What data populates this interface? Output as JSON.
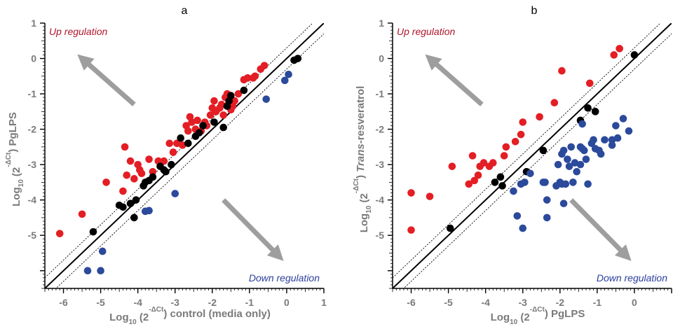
{
  "colors": {
    "up": "#e31e24",
    "neutral": "#000000",
    "down": "#2b4a9c",
    "up_label": "#b0152b",
    "down_label": "#2b3f9e",
    "arrow": "#9e9e9e",
    "axis_text": "#7a7a7a"
  },
  "chart_data": [
    {
      "type": "scatter",
      "panel": "a",
      "title": "a",
      "xlabel": "Log10 (2^-ΔCt) control (media only)",
      "xlabel_parts": [
        "Log",
        "10",
        " (2",
        "-ΔCt",
        ") control (media only)"
      ],
      "ylabel": "Log10 (2^-ΔCt) PgLPS",
      "ylabel_parts": [
        "Log",
        "10",
        " (2",
        "-ΔCt",
        ") ",
        "",
        "PgLPS"
      ],
      "xlim": [
        -6.5,
        1
      ],
      "ylim": [
        -6.5,
        1
      ],
      "xticks": [
        -6,
        -5,
        -4,
        -3,
        -2,
        -1,
        0,
        1
      ],
      "yticks": [
        -5,
        -4,
        -3,
        -2,
        -1,
        0,
        1
      ],
      "grid": false,
      "reference_lines": {
        "identity": true,
        "band_offset": 0.3
      },
      "annotations": {
        "up": "Up regulation",
        "down": "Down regulation"
      },
      "series": [
        {
          "group": "up",
          "color": "#e31e24",
          "points": [
            [
              -6.1,
              -4.95
            ],
            [
              -5.5,
              -4.4
            ],
            [
              -4.85,
              -3.5
            ],
            [
              -4.4,
              -3.75
            ],
            [
              -4.35,
              -2.5
            ],
            [
              -4.2,
              -2.9
            ],
            [
              -4.3,
              -3.3
            ],
            [
              -4.1,
              -3.4
            ],
            [
              -4.0,
              -3.0
            ],
            [
              -3.95,
              -3.15
            ],
            [
              -3.9,
              -3.25
            ],
            [
              -3.7,
              -2.85
            ],
            [
              -3.6,
              -3.2
            ],
            [
              -3.45,
              -2.9
            ],
            [
              -3.3,
              -2.9
            ],
            [
              -3.15,
              -2.4
            ],
            [
              -3.05,
              -2.65
            ],
            [
              -2.95,
              -2.4
            ],
            [
              -2.8,
              -2.45
            ],
            [
              -2.7,
              -1.9
            ],
            [
              -2.65,
              -2.05
            ],
            [
              -2.6,
              -1.65
            ],
            [
              -2.55,
              -1.8
            ],
            [
              -2.45,
              -2.0
            ],
            [
              -2.4,
              -1.75
            ],
            [
              -2.3,
              -2.05
            ],
            [
              -2.2,
              -1.8
            ],
            [
              -2.15,
              -1.9
            ],
            [
              -2.05,
              -1.6
            ],
            [
              -2.0,
              -1.4
            ],
            [
              -1.95,
              -1.2
            ],
            [
              -1.9,
              -1.5
            ],
            [
              -1.8,
              -1.4
            ],
            [
              -1.75,
              -1.3
            ],
            [
              -1.7,
              -1.6
            ],
            [
              -1.65,
              -1.1
            ],
            [
              -1.6,
              -1.0
            ],
            [
              -1.55,
              -1.25
            ],
            [
              -1.5,
              -1.45
            ],
            [
              -1.45,
              -1.35
            ],
            [
              -1.4,
              -1.2
            ],
            [
              -1.3,
              -1.0
            ],
            [
              -1.15,
              -0.6
            ],
            [
              -1.05,
              -0.55
            ],
            [
              -0.9,
              -0.55
            ],
            [
              -0.85,
              -0.5
            ],
            [
              -0.7,
              -0.3
            ],
            [
              -0.6,
              -0.2
            ]
          ]
        },
        {
          "group": "neutral",
          "color": "#000000",
          "points": [
            [
              -5.2,
              -4.9
            ],
            [
              -4.5,
              -4.15
            ],
            [
              -4.4,
              -4.2
            ],
            [
              -4.2,
              -4.1
            ],
            [
              -4.1,
              -4.5
            ],
            [
              -4.05,
              -4.0
            ],
            [
              -3.85,
              -3.6
            ],
            [
              -3.8,
              -3.5
            ],
            [
              -3.7,
              -3.45
            ],
            [
              -3.6,
              -3.35
            ],
            [
              -3.4,
              -3.05
            ],
            [
              -3.3,
              -3.15
            ],
            [
              -3.25,
              -3.2
            ],
            [
              -3.1,
              -3.0
            ],
            [
              -2.85,
              -2.25
            ],
            [
              -2.65,
              -2.4
            ],
            [
              -2.45,
              -2.2
            ],
            [
              -2.35,
              -2.1
            ],
            [
              -2.25,
              -1.9
            ],
            [
              -1.95,
              -1.8
            ],
            [
              -1.7,
              -1.95
            ],
            [
              -1.6,
              -1.35
            ],
            [
              -1.55,
              -1.2
            ],
            [
              -1.5,
              -1.05
            ],
            [
              -1.15,
              -0.9
            ],
            [
              0.2,
              -0.05
            ],
            [
              0.3,
              0.0
            ]
          ]
        },
        {
          "group": "down",
          "color": "#2b4a9c",
          "points": [
            [
              -5.35,
              -6.0
            ],
            [
              -5.0,
              -6.0
            ],
            [
              -4.95,
              -5.45
            ],
            [
              -3.8,
              -4.32
            ],
            [
              -3.7,
              -4.3
            ],
            [
              -3.0,
              -3.82
            ],
            [
              -0.55,
              -1.15
            ],
            [
              -0.05,
              -0.62
            ],
            [
              0.05,
              -0.45
            ]
          ]
        }
      ]
    },
    {
      "type": "scatter",
      "panel": "b",
      "title": "b",
      "xlabel": "Log10 (2^-ΔCt) PgLPS",
      "xlabel_parts": [
        "Log",
        "10",
        " (2",
        "-ΔCt",
        ") PgLPS"
      ],
      "ylabel": "Log10 (2^-ΔCt) Trans-resveratrol",
      "ylabel_parts": [
        "Log",
        "10",
        " (2",
        "-ΔCt",
        ") ",
        "Trans",
        "-resveratrol"
      ],
      "xlim": [
        -6.5,
        1
      ],
      "ylim": [
        -6.5,
        1
      ],
      "xticks": [
        -6,
        -5,
        -4,
        -3,
        -2,
        -1,
        0
      ],
      "yticks": [
        -5,
        -4,
        -3,
        -2,
        -1,
        0,
        1
      ],
      "grid": false,
      "reference_lines": {
        "identity": true,
        "band_offset": 0.3
      },
      "annotations": {
        "up": "Up regulation",
        "down": "Down regulation"
      },
      "series": [
        {
          "group": "up",
          "color": "#e31e24",
          "points": [
            [
              -6.0,
              -3.8
            ],
            [
              -6.0,
              -4.85
            ],
            [
              -5.5,
              -3.9
            ],
            [
              -4.9,
              -3.05
            ],
            [
              -4.45,
              -3.55
            ],
            [
              -4.35,
              -2.75
            ],
            [
              -4.3,
              -3.45
            ],
            [
              -4.2,
              -3.3
            ],
            [
              -4.15,
              -3.05
            ],
            [
              -4.05,
              -2.95
            ],
            [
              -3.9,
              -3.05
            ],
            [
              -3.8,
              -2.95
            ],
            [
              -3.5,
              -2.75
            ],
            [
              -3.45,
              -2.5
            ],
            [
              -3.2,
              -2.35
            ],
            [
              -3.05,
              -2.15
            ],
            [
              -3.0,
              -1.8
            ],
            [
              -2.55,
              -1.65
            ],
            [
              -2.15,
              -1.25
            ],
            [
              -1.95,
              -0.35
            ],
            [
              -1.2,
              -0.7
            ],
            [
              -0.55,
              0.1
            ],
            [
              -0.4,
              0.28
            ]
          ]
        },
        {
          "group": "neutral",
          "color": "#000000",
          "points": [
            [
              -4.95,
              -4.8
            ],
            [
              -3.75,
              -3.5
            ],
            [
              -3.6,
              -3.35
            ],
            [
              -3.55,
              -3.6
            ],
            [
              -2.9,
              -3.2
            ],
            [
              -2.45,
              -2.6
            ],
            [
              -1.45,
              -1.75
            ],
            [
              -1.25,
              -1.4
            ],
            [
              -1.05,
              -1.5
            ],
            [
              0.0,
              0.1
            ]
          ]
        },
        {
          "group": "down",
          "color": "#2b4a9c",
          "points": [
            [
              -3.25,
              -3.75
            ],
            [
              -3.15,
              -4.45
            ],
            [
              -3.05,
              -3.55
            ],
            [
              -3.0,
              -4.8
            ],
            [
              -2.95,
              -3.5
            ],
            [
              -2.8,
              -3.25
            ],
            [
              -2.45,
              -3.5
            ],
            [
              -2.4,
              -3.5
            ],
            [
              -2.35,
              -4.0
            ],
            [
              -2.35,
              -4.5
            ],
            [
              -2.1,
              -3.6
            ],
            [
              -2.05,
              -3.0
            ],
            [
              -2.0,
              -3.5
            ],
            [
              -1.95,
              -3.55
            ],
            [
              -1.95,
              -2.7
            ],
            [
              -1.9,
              -2.6
            ],
            [
              -1.9,
              -4.1
            ],
            [
              -1.85,
              -3.55
            ],
            [
              -1.8,
              -2.85
            ],
            [
              -1.75,
              -3.05
            ],
            [
              -1.7,
              -2.5
            ],
            [
              -1.65,
              -3.5
            ],
            [
              -1.6,
              -2.95
            ],
            [
              -1.55,
              -3.2
            ],
            [
              -1.45,
              -3.0
            ],
            [
              -1.45,
              -2.5
            ],
            [
              -1.4,
              -2.55
            ],
            [
              -1.4,
              -1.85
            ],
            [
              -1.35,
              -2.6
            ],
            [
              -1.3,
              -2.85
            ],
            [
              -1.25,
              -3.55
            ],
            [
              -1.15,
              -2.4
            ],
            [
              -1.1,
              -2.3
            ],
            [
              -1.05,
              -2.55
            ],
            [
              -0.95,
              -2.6
            ],
            [
              -0.9,
              -2.7
            ],
            [
              -0.8,
              -2.3
            ],
            [
              -0.6,
              -2.3
            ],
            [
              -0.6,
              -2.45
            ],
            [
              -0.5,
              -1.9
            ],
            [
              -0.3,
              -1.7
            ],
            [
              -0.15,
              -2.05
            ],
            [
              -0.45,
              -2.25
            ]
          ]
        }
      ]
    }
  ]
}
